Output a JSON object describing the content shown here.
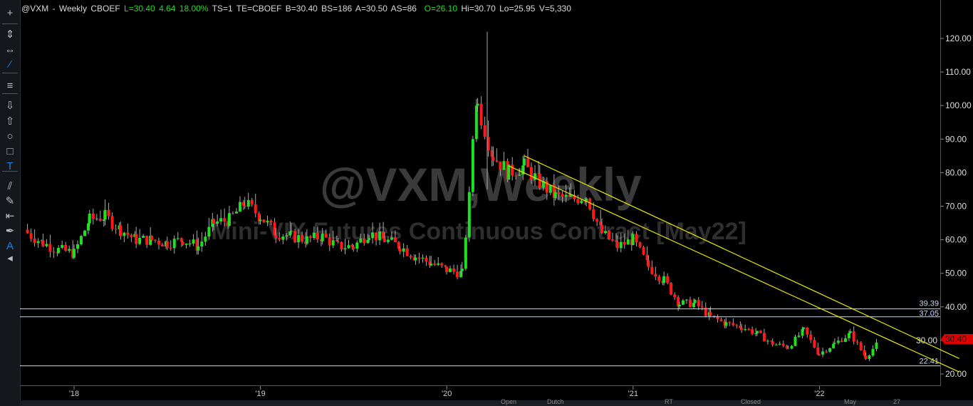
{
  "header": {
    "symbol": "@VXM - Weekly",
    "exchange": "CBOEF",
    "last": "L=30.40",
    "change": "4.64",
    "pct": "18.00%",
    "ts": "TS=1",
    "te": "TE=CBOEF",
    "bid": "B=30.40",
    "bs": "BS=186",
    "ask": "A=30.50",
    "as": "AS=86",
    "open": "O=26.10",
    "high": "Hi=30.70",
    "low": "Lo=25.95",
    "vol": "V=5,330"
  },
  "watermark": {
    "title": "@VXM,Weekly",
    "subtitle": "Mini-VIX Futures Continuous Contract [May22]"
  },
  "toolbar": [
    "crosshair-icon",
    "vertical-resize-icon",
    "horizontal-resize-icon",
    "trendline-icon",
    "menu-icon",
    "arrow-down-icon",
    "arrow-up-icon",
    "ellipse-icon",
    "rectangle-icon",
    "text-icon",
    "parallel-lines-icon",
    "remove-drawings-icon",
    "snap-left-icon",
    "pen-icon",
    "text-label-icon",
    "collapse-icon"
  ],
  "bottom_tabs": [
    "Open",
    "Dutch",
    "RT",
    "Closed",
    "May",
    "27"
  ],
  "colors": {
    "up": "#1fe01f",
    "down": "#ff1a1a",
    "trend": "#e8e800",
    "level": "#c8d8f0",
    "last_price": "#e00000"
  },
  "chart_data": {
    "type": "candlestick",
    "ylim": [
      18,
      125
    ],
    "yticks": [
      "120.00",
      "110.00",
      "100.00",
      "90.00",
      "80.00",
      "70.00",
      "60.00",
      "50.00",
      "40.00",
      "30.00",
      "20.00"
    ],
    "xtick_labels": [
      "'18",
      "'19",
      "'20",
      "'21",
      "'22"
    ],
    "months": [
      "2017-10",
      "2017-11",
      "2017-12",
      "2018-01",
      "2018-02",
      "2018-03",
      "2018-04",
      "2018-05",
      "2018-06",
      "2018-07",
      "2018-08",
      "2018-09",
      "2018-10",
      "2018-11",
      "2018-12",
      "2019-01",
      "2019-02",
      "2019-03",
      "2019-04",
      "2019-05",
      "2019-06",
      "2019-07",
      "2019-08",
      "2019-09",
      "2019-10",
      "2019-11",
      "2019-12",
      "2020-01",
      "2020-02",
      "2020-03",
      "2020-04",
      "2020-05",
      "2020-06",
      "2020-07",
      "2020-08",
      "2020-09",
      "2020-10",
      "2020-11",
      "2020-12",
      "2021-01",
      "2021-02",
      "2021-03",
      "2021-04",
      "2021-05",
      "2021-06",
      "2021-07",
      "2021-08",
      "2021-09",
      "2021-10",
      "2021-11",
      "2021-12",
      "2022-01",
      "2022-02",
      "2022-03",
      "2022-04",
      "2022-05"
    ],
    "approx_monthly_close": [
      62,
      59,
      57,
      56,
      66,
      67,
      63,
      60,
      60,
      59,
      60,
      58,
      65,
      66,
      71,
      67,
      62,
      61,
      60,
      61,
      58,
      58,
      62,
      60,
      58,
      55,
      53,
      51,
      50,
      100,
      85,
      80,
      82,
      77,
      73,
      72,
      73,
      62,
      58,
      60,
      52,
      48,
      41,
      41,
      37,
      35,
      34,
      32,
      29,
      28,
      33,
      26,
      29,
      32,
      25,
      30.4
    ],
    "levels": [
      39.39,
      37.05,
      22.41
    ],
    "last_price": "30.40",
    "trendlines": [
      {
        "from": [
          "2020-06",
          85
        ],
        "to": [
          "2022-10",
          24.6
        ]
      },
      {
        "from": [
          "2020-05",
          82
        ],
        "to": [
          "2022-10",
          20.6
        ]
      }
    ]
  }
}
